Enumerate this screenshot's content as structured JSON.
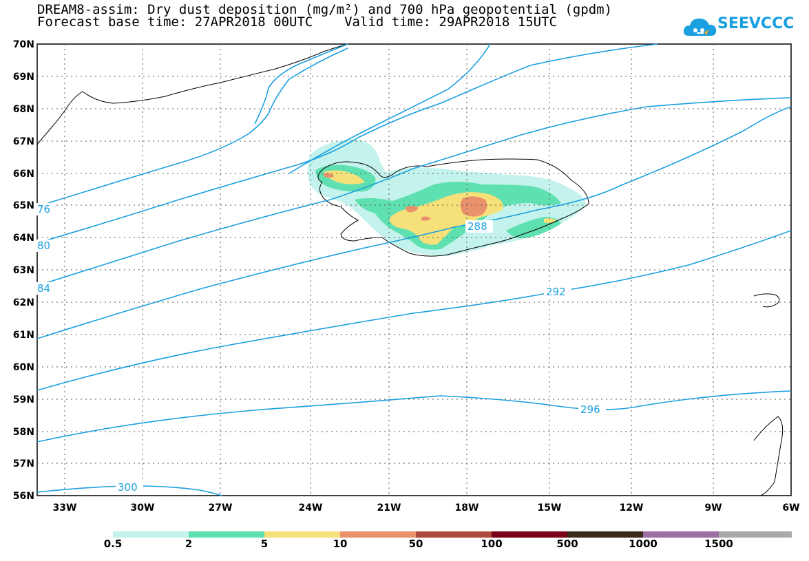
{
  "title": {
    "line1": "DREAM8-assim: Dry dust deposition (mg/m²) and 700 hPa geopotential (gpdm)",
    "line2": "Forecast base time: 27APR2018 00UTC    Valid time: 29APR2018 15UTC"
  },
  "logo": {
    "text": "SEEVCCC",
    "icon": "cloud-icon",
    "color": "#1a9fe0"
  },
  "map": {
    "lat_labels": [
      "70N",
      "69N",
      "68N",
      "67N",
      "66N",
      "65N",
      "64N",
      "63N",
      "62N",
      "61N",
      "60N",
      "59N",
      "58N",
      "57N",
      "56N"
    ],
    "lon_labels": [
      "33W",
      "30W",
      "27W",
      "24W",
      "21W",
      "18W",
      "15W",
      "12W",
      "9W",
      "6W"
    ],
    "lat_range": [
      56,
      70
    ],
    "lon_range": [
      -34.3,
      -6
    ],
    "contour_color": "#1a9fe0",
    "contours": [
      {
        "label": "76",
        "value": 276
      },
      {
        "label": "80",
        "value": 280
      },
      {
        "label": "84",
        "value": 284
      },
      {
        "label": "288",
        "value": 288
      },
      {
        "label": "292",
        "value": 292
      },
      {
        "label": "296",
        "value": 296
      },
      {
        "label": "300",
        "value": 300
      }
    ]
  },
  "colorbar": {
    "levels": [
      "0.5",
      "2",
      "5",
      "10",
      "50",
      "100",
      "500",
      "1000",
      "1500"
    ],
    "colors": [
      "#c3f3ec",
      "#5fe0b0",
      "#f5e07a",
      "#e8916a",
      "#b14a3e",
      "#780018",
      "#3a2a1a",
      "#9b6fa3",
      "#a9a9a9"
    ]
  }
}
